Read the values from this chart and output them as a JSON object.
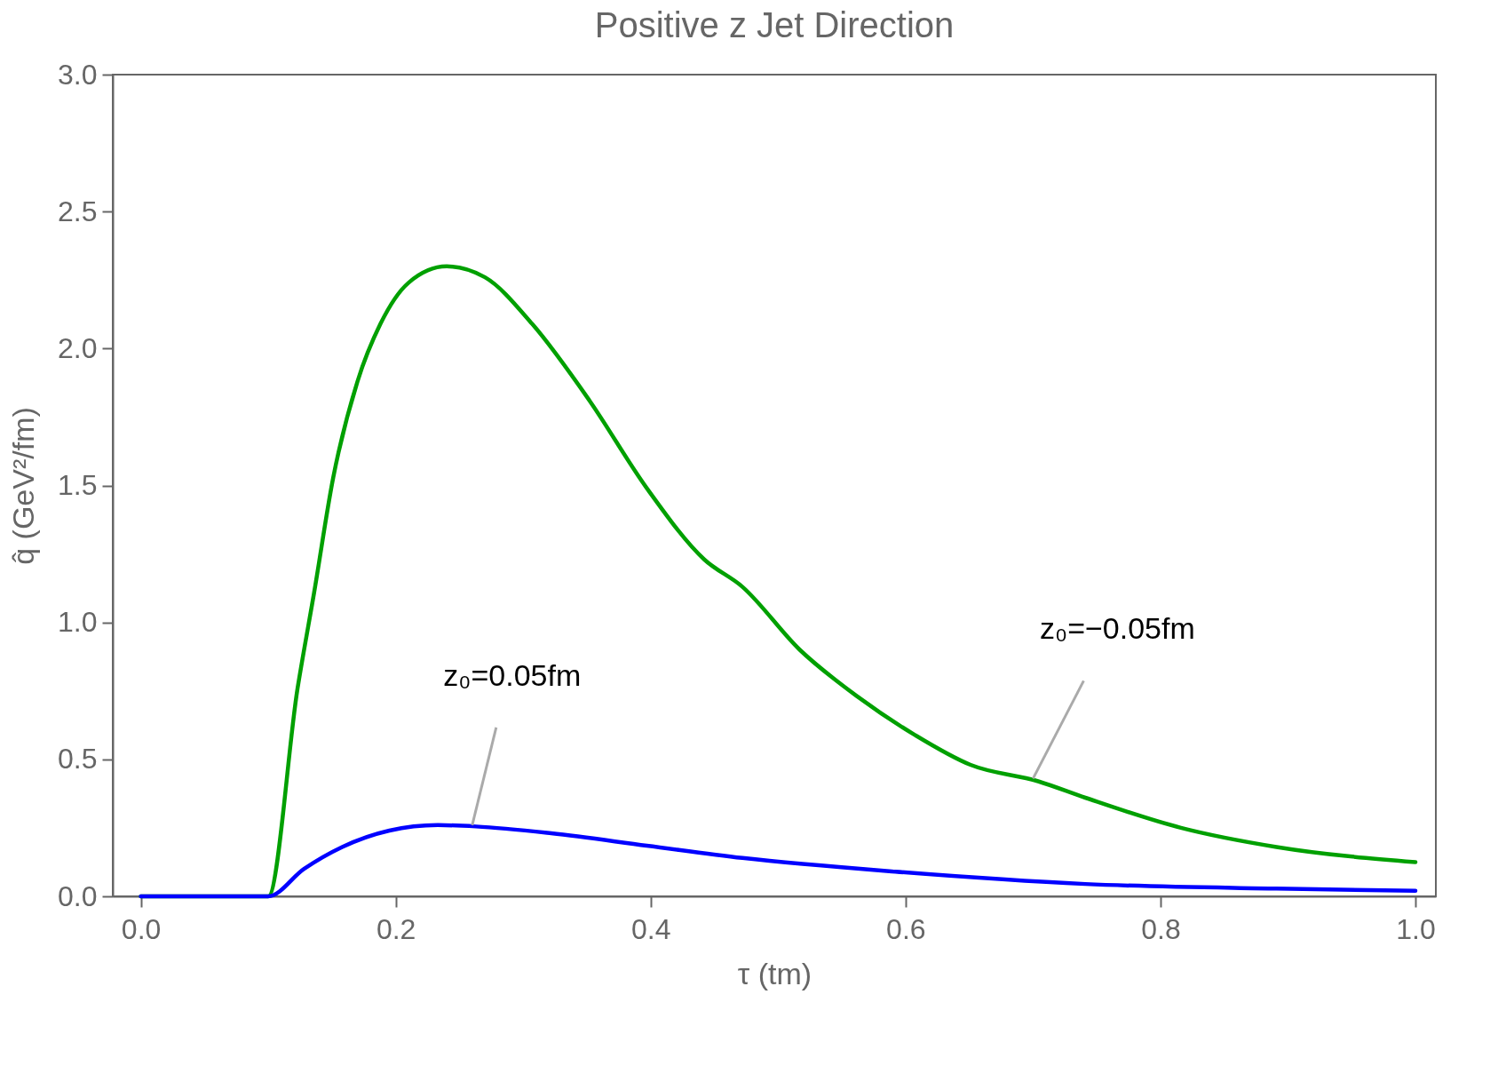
{
  "chart_data": {
    "type": "line",
    "title": "Positive z Jet Direction",
    "xlabel": "τ (tm)",
    "ylabel": "q̂ (GeV²/fm)",
    "xlim": [
      -0.022,
      1.016
    ],
    "ylim": [
      0,
      3
    ],
    "xticks": [
      {
        "value": 0,
        "label": "0.0"
      },
      {
        "value": 0.2,
        "label": "0.2"
      },
      {
        "value": 0.4,
        "label": "0.4"
      },
      {
        "value": 0.6,
        "label": "0.6"
      },
      {
        "value": 0.8,
        "label": "0.8"
      },
      {
        "value": 1,
        "label": "1.0"
      }
    ],
    "yticks": [
      {
        "value": 0,
        "label": "0.0"
      },
      {
        "value": 0.5,
        "label": "0.5"
      },
      {
        "value": 1,
        "label": "1.0"
      },
      {
        "value": 1.5,
        "label": "1.5"
      },
      {
        "value": 2,
        "label": "2.0"
      },
      {
        "value": 2.5,
        "label": "2.5"
      },
      {
        "value": 3,
        "label": "3.0"
      }
    ],
    "grid": false,
    "legend": false,
    "line_style": "solid",
    "marker": "none",
    "series": [
      {
        "color": "#00a000",
        "x": [
          0,
          0.1,
          0.123,
          0.136,
          0.151,
          0.17,
          0.188,
          0.21,
          0.24,
          0.27,
          0.307,
          0.352,
          0.397,
          0.442,
          0.472,
          0.517,
          0.562,
          0.607,
          0.651,
          0.704,
          0.741,
          0.816,
          0.891,
          1.0
        ],
        "values": [
          0,
          0,
          0.76,
          1.11,
          1.53,
          1.88,
          2.09,
          2.24,
          2.3,
          2.26,
          2.09,
          1.81,
          1.49,
          1.23,
          1.13,
          0.9,
          0.73,
          0.59,
          0.48,
          0.42,
          0.36,
          0.25,
          0.18,
          0.125
        ]
      },
      {
        "color": "#0000ff",
        "x": [
          0,
          0.1,
          0.128,
          0.158,
          0.195,
          0.233,
          0.263,
          0.322,
          0.397,
          0.472,
          0.592,
          0.741,
          0.891,
          1.0
        ],
        "values": [
          0,
          0,
          0.1,
          0.18,
          0.24,
          0.26,
          0.255,
          0.23,
          0.185,
          0.14,
          0.09,
          0.045,
          0.028,
          0.02
        ]
      }
    ],
    "annotations": [
      {
        "text": "z₀=0.05fm",
        "x": 0.26,
        "y": 0.26
      },
      {
        "text": "z₀=−0.05fm",
        "x": 0.7,
        "y": 0.43
      }
    ]
  }
}
